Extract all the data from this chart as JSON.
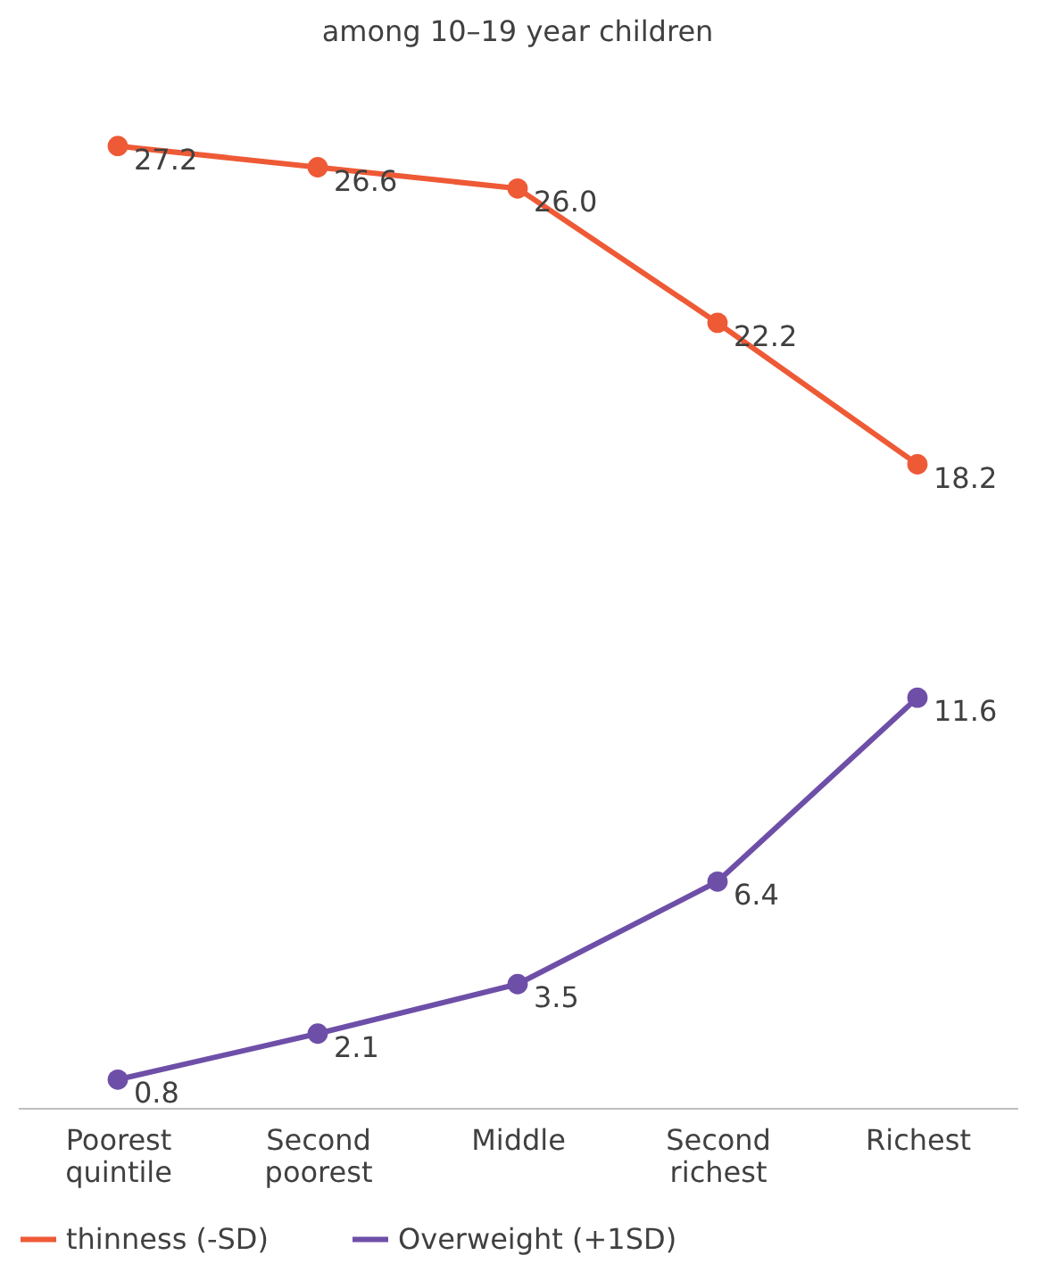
{
  "chart_data": {
    "type": "line",
    "title": "among 10–19 year children",
    "categories": [
      "Poorest quintile",
      "Second poorest",
      "Middle",
      "Second richest",
      "Richest"
    ],
    "series": [
      {
        "name": "thinness (-SD)",
        "color": "#ee5a36",
        "values": [
          27.2,
          26.6,
          26.0,
          22.2,
          18.2
        ],
        "value_labels": [
          "27.2",
          "26.6",
          "26.0",
          "22.2",
          "18.2"
        ]
      },
      {
        "name": "Overweight (+1SD)",
        "color": "#6e4fa8",
        "values": [
          0.8,
          2.1,
          3.5,
          6.4,
          11.6
        ],
        "value_labels": [
          "0.8",
          "2.1",
          "3.5",
          "6.4",
          "11.6"
        ]
      }
    ],
    "data_labels": true,
    "marker": "circle",
    "line_style": "solid",
    "grid": false,
    "legend": "bottom"
  }
}
